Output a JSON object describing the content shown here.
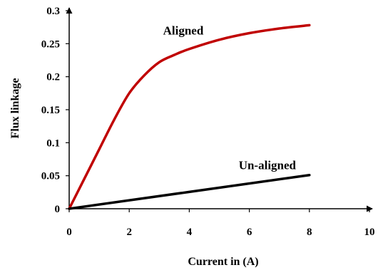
{
  "chart_data": {
    "type": "line",
    "title": "",
    "xlabel": "Current in (A)",
    "ylabel": "Flux linkage",
    "xlim": [
      0,
      10
    ],
    "ylim": [
      0,
      0.3
    ],
    "x_ticks": [
      "0",
      "2",
      "4",
      "6",
      "8",
      "10"
    ],
    "y_ticks": [
      "0",
      "0.05",
      "0.1",
      "0.15",
      "0.2",
      "0.25",
      "0.3"
    ],
    "grid": false,
    "legend": "none",
    "series": [
      {
        "name": "Aligned",
        "color": "#c00000",
        "x": [
          0,
          0.5,
          1,
          1.5,
          2,
          2.5,
          3,
          3.5,
          4,
          5,
          6,
          7,
          8
        ],
        "y": [
          0,
          0.045,
          0.09,
          0.135,
          0.175,
          0.202,
          0.222,
          0.233,
          0.242,
          0.256,
          0.266,
          0.273,
          0.278
        ]
      },
      {
        "name": "Un-aligned",
        "color": "#000000",
        "x": [
          0,
          8
        ],
        "y": [
          0,
          0.051
        ]
      }
    ],
    "annotations": [
      {
        "text": "Aligned",
        "x": 3.8,
        "y": 0.264
      },
      {
        "text": "Un-aligned",
        "x": 6.6,
        "y": 0.06
      }
    ]
  }
}
